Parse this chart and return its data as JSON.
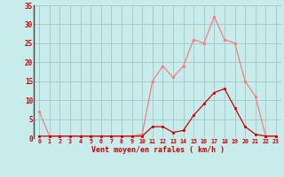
{
  "hours": [
    0,
    1,
    2,
    3,
    4,
    5,
    6,
    7,
    8,
    9,
    10,
    11,
    12,
    13,
    14,
    15,
    16,
    17,
    18,
    19,
    20,
    21,
    22,
    23
  ],
  "rafales": [
    7,
    0.5,
    0.5,
    0.5,
    0.5,
    0.5,
    0.5,
    0.5,
    0.5,
    0.5,
    1,
    15,
    19,
    16,
    19,
    26,
    25,
    32,
    26,
    25,
    15,
    11,
    0.5,
    0.5
  ],
  "vent_moyen": [
    0.5,
    0.5,
    0.5,
    0.5,
    0.5,
    0.5,
    0.5,
    0.5,
    0.5,
    0.5,
    0.5,
    3,
    3,
    1.5,
    2,
    6,
    9,
    12,
    13,
    8,
    3,
    1,
    0.5,
    0.5
  ],
  "rafales_color": "#f08080",
  "vent_moyen_color": "#cc0000",
  "bg_color": "#c8ecec",
  "grid_color": "#a8cccc",
  "axis_color": "#cc0000",
  "xlabel": "Vent moyen/en rafales ( km/h )",
  "ylim": [
    0,
    35
  ],
  "xlim": [
    -0.5,
    23.5
  ],
  "yticks": [
    0,
    5,
    10,
    15,
    20,
    25,
    30,
    35
  ]
}
